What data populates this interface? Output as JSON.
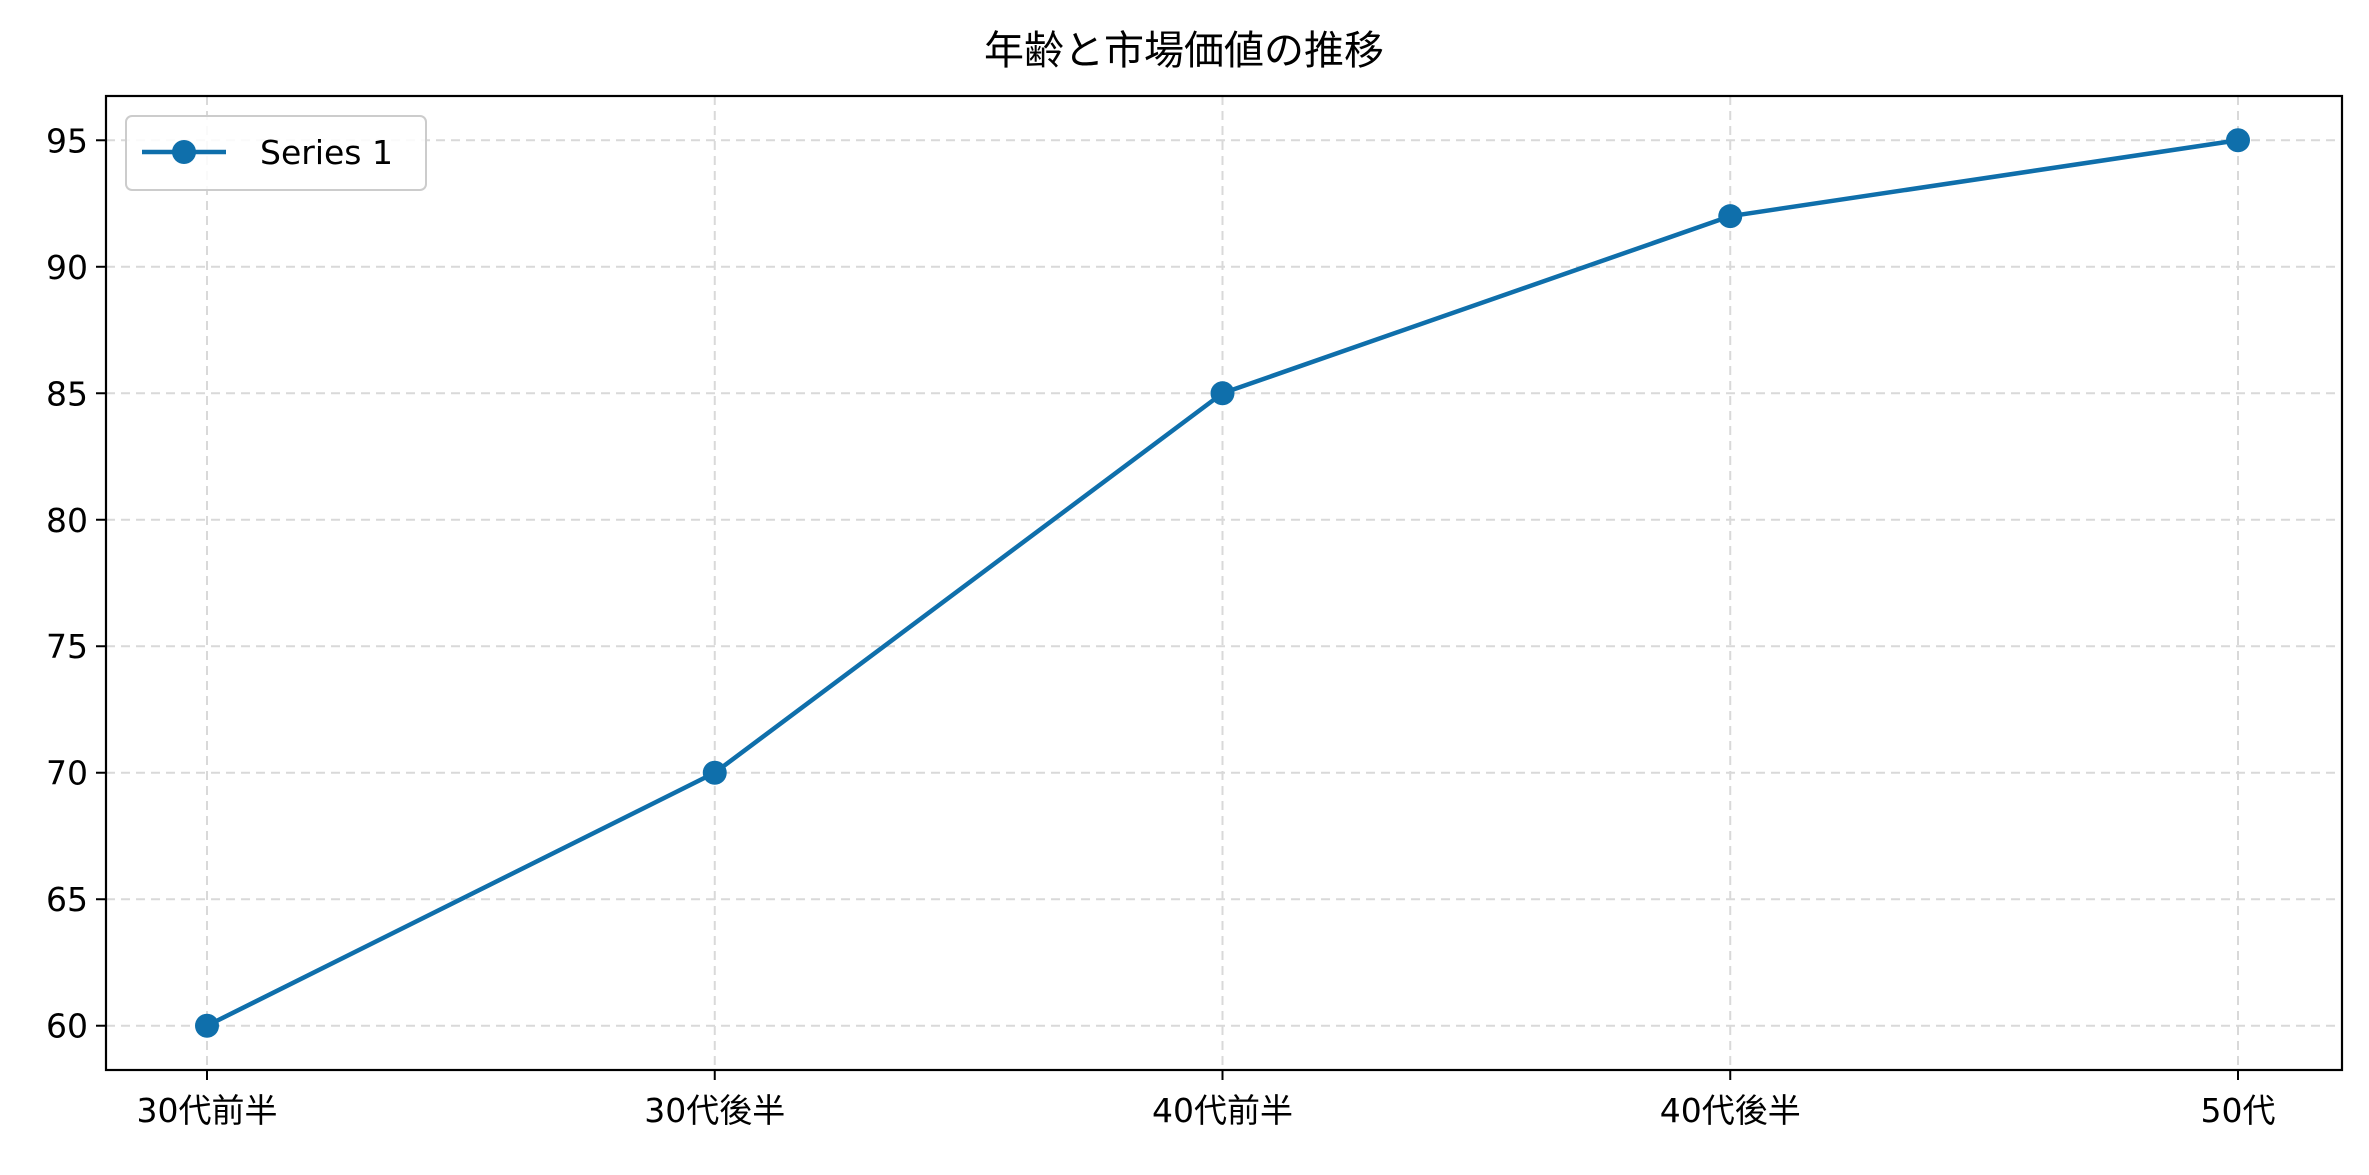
{
  "chart_data": {
    "type": "line",
    "title": "年齢と市場価値の推移",
    "xlabel": "",
    "ylabel": "",
    "categories": [
      "30代前半",
      "30代後半",
      "40代前半",
      "40代後半",
      "50代"
    ],
    "series": [
      {
        "name": "Series 1",
        "values": [
          60,
          70,
          85,
          92,
          95
        ],
        "color": "#0f6fab",
        "marker": "circle"
      }
    ],
    "ylim": [
      58.25,
      96.75
    ],
    "yticks": [
      60,
      65,
      70,
      75,
      80,
      85,
      90,
      95
    ],
    "grid": true,
    "legend_position": "top-left"
  }
}
